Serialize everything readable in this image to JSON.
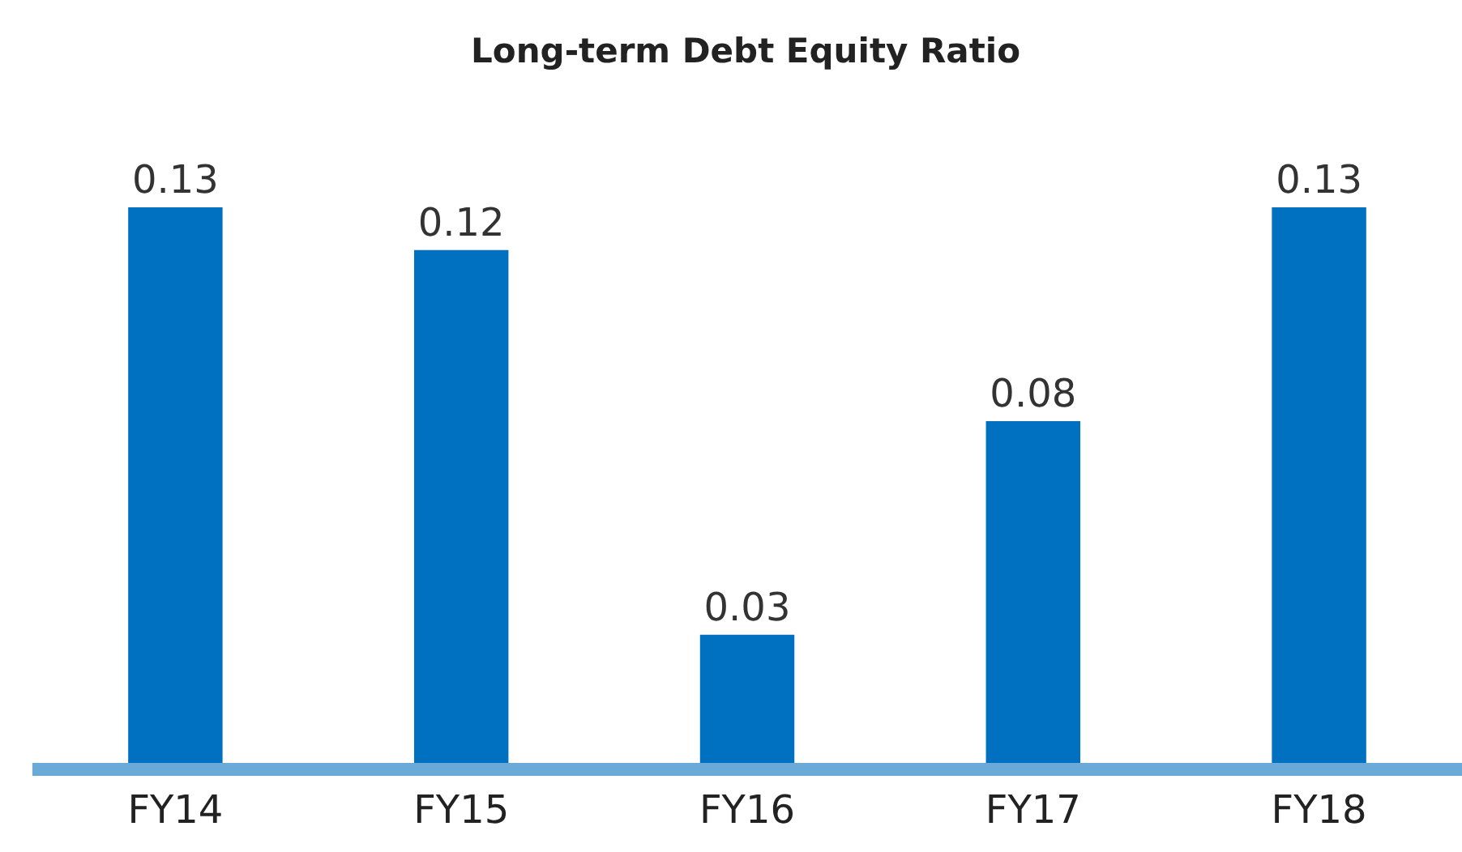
{
  "chart_data": {
    "type": "bar",
    "title": "Long-term Debt Equity Ratio",
    "categories": [
      "FY14",
      "FY15",
      "FY16",
      "FY17",
      "FY18"
    ],
    "values": [
      0.13,
      0.12,
      0.03,
      0.08,
      0.13
    ],
    "color": "#0070c0",
    "data_labels": true,
    "legend": false
  }
}
